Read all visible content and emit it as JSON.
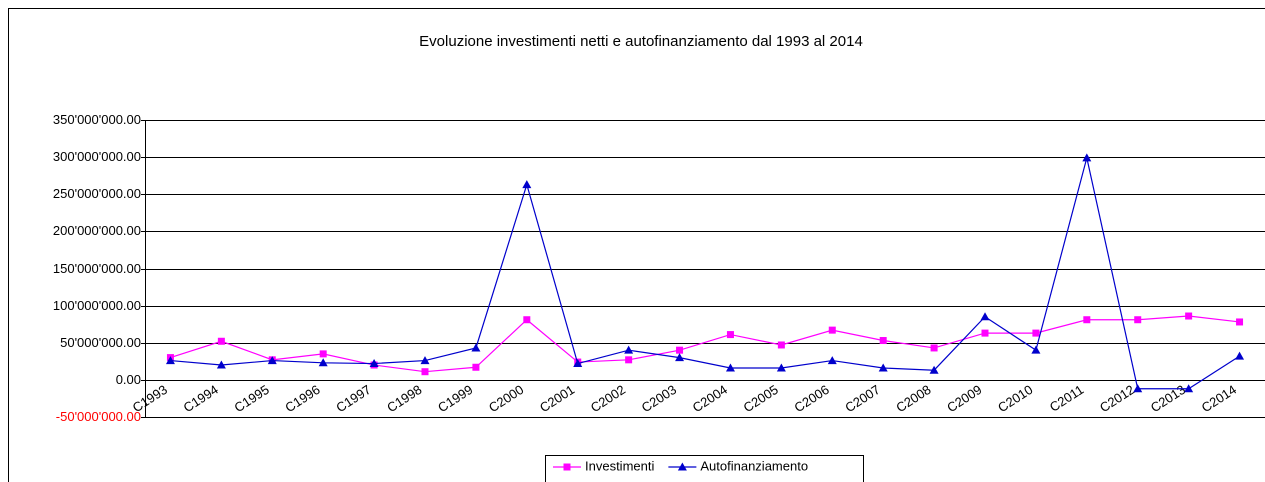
{
  "chart_data": {
    "type": "line",
    "title": "Evoluzione investimenti netti e autofinanziamento dal 1993 al 2014",
    "categories": [
      "C1993",
      "C1994",
      "C1995",
      "C1996",
      "C1997",
      "C1998",
      "C1999",
      "C2000",
      "C2001",
      "C2002",
      "C2003",
      "C2004",
      "C2005",
      "C2006",
      "C2007",
      "C2008",
      "C2009",
      "C2010",
      "C2011",
      "C2012",
      "C2013",
      "C2014"
    ],
    "series": [
      {
        "name": "Investimenti",
        "color": "#ff00ff",
        "marker": "square",
        "values": [
          30000000,
          52000000,
          27000000,
          35000000,
          20000000,
          11000000,
          17000000,
          81000000,
          24000000,
          27000000,
          40000000,
          61000000,
          47000000,
          67000000,
          53000000,
          43000000,
          63000000,
          63000000,
          81000000,
          81000000,
          86000000,
          78000000
        ]
      },
      {
        "name": "Autofinanziamento",
        "color": "#0000cc",
        "marker": "triangle",
        "values": [
          26000000,
          20000000,
          26000000,
          23000000,
          22000000,
          26000000,
          43000000,
          263000000,
          22000000,
          40000000,
          30000000,
          16000000,
          16000000,
          26000000,
          16000000,
          13000000,
          85000000,
          40000000,
          299000000,
          -12000000,
          -12000000,
          32000000
        ]
      }
    ],
    "ylim": [
      -50000000,
      350000000
    ],
    "yticks": [
      {
        "value": -50000000,
        "label": "-50'000'000.00"
      },
      {
        "value": 0,
        "label": "0.00"
      },
      {
        "value": 50000000,
        "label": "50'000'000.00"
      },
      {
        "value": 100000000,
        "label": "100'000'000.00"
      },
      {
        "value": 150000000,
        "label": "150'000'000.00"
      },
      {
        "value": 200000000,
        "label": "200'000'000.00"
      },
      {
        "value": 250000000,
        "label": "250'000'000.00"
      },
      {
        "value": 300000000,
        "label": "300'000'000.00"
      },
      {
        "value": 350000000,
        "label": "350'000'000.00"
      }
    ],
    "negative_tick_color": "#ff0000",
    "grid": true,
    "legend": "bottom"
  }
}
